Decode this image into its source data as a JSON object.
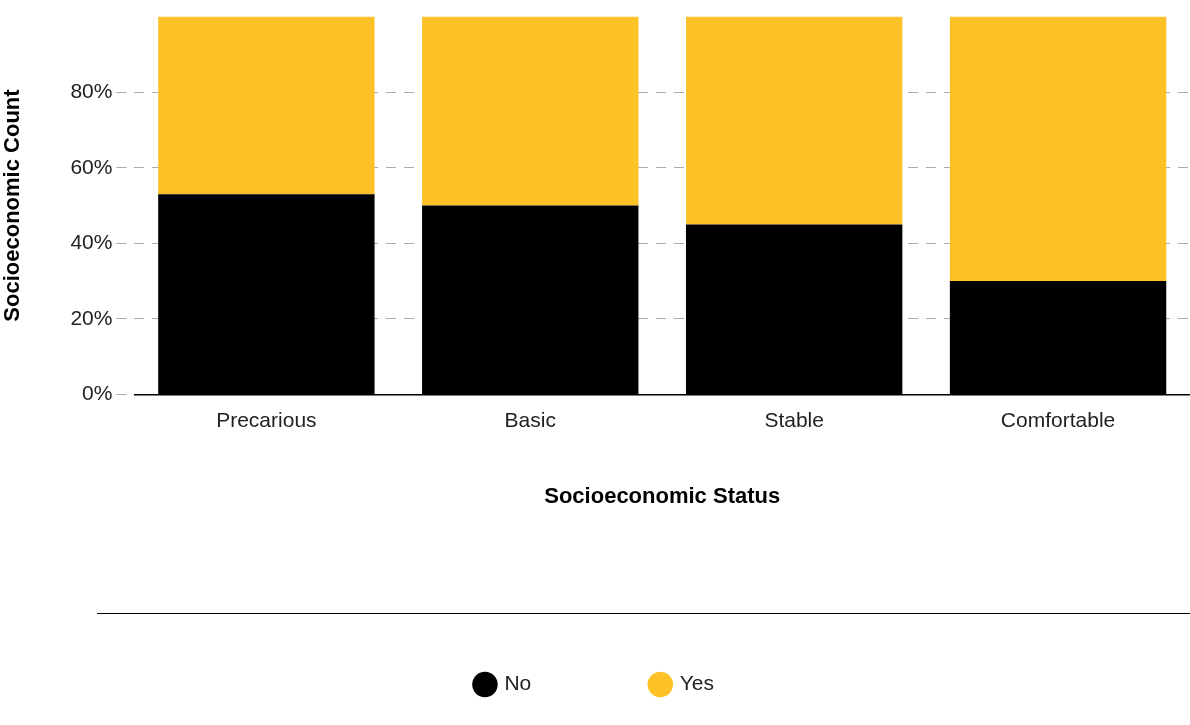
{
  "chart_data": {
    "type": "bar",
    "stacked": true,
    "categories": [
      "Precarious",
      "Basic",
      "Stable",
      "Comfortable"
    ],
    "series": [
      {
        "name": "No",
        "color": "#000000",
        "values": [
          53,
          50,
          45,
          30
        ]
      },
      {
        "name": "Yes",
        "color": "#fdc228",
        "values": [
          47,
          50,
          55,
          70
        ]
      }
    ],
    "xlabel": "Socioeconomic Status",
    "ylabel": "Socioeconomic Count",
    "ylim": [
      0,
      100
    ],
    "yticks": [
      {
        "value": 0,
        "label": "0%"
      },
      {
        "value": 20,
        "label": "20%"
      },
      {
        "value": 40,
        "label": "40%"
      },
      {
        "value": 60,
        "label": "60%"
      },
      {
        "value": 80,
        "label": "80%"
      }
    ],
    "grid": "y",
    "legend": "bottom"
  }
}
